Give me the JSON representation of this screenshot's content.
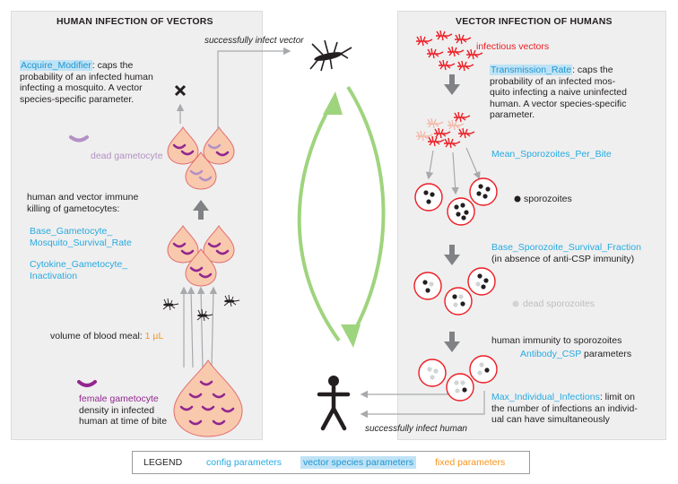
{
  "left_panel": {
    "title": "HUMAN INFECTION OF VECTORS",
    "acquire": {
      "param": "Acquire_Modifier",
      "l1": ": caps the",
      "l2": "probability of an infected human",
      "l3": "infecting a mosquito. A vector",
      "l4": "species-specific parameter."
    },
    "dead_gametocyte": "dead gametocyte",
    "killing": {
      "l1": "human and vector immune",
      "l2": "killing of gametocytes:"
    },
    "param_base_1": "Base_Gametocyte_",
    "param_base_2": "Mosquito_Survival_Rate",
    "param_cyto_1": "Cytokine_Gametocyte_",
    "param_cyto_2": "Inactivation",
    "blood_meal_label": "volume of blood meal:",
    "blood_meal_value": "1 µL",
    "female": {
      "label": "female gametocyte",
      "l2": "density in infected",
      "l3": "human at time of bite"
    }
  },
  "center": {
    "infect_vector": "successfully infect vector",
    "infect_human": "successfully infect human"
  },
  "right_panel": {
    "title": "VECTOR INFECTION OF HUMANS",
    "infectious_vectors": "infectious vectors",
    "transmission": {
      "param": "Transmission_Rate",
      "l1": ": caps the",
      "l2": "probability of an infected mos-",
      "l3": "quito infecting a naive uninfected",
      "l4": "human. A vector species-specific",
      "l5": "parameter."
    },
    "mean_spz": "Mean_Sporozoites_Per_Bite",
    "sporozoites": "sporozoites",
    "base_spz": "Base_Sporozoite_Survival_Fraction",
    "base_spz_note": "(in absence of anti-CSP immunity)",
    "dead_spz": "dead sporozoites",
    "immunity": "human immunity to sporozoites",
    "antibody": "Antibody_CSP",
    "antibody_suffix": "parameters",
    "max_inf": {
      "param": "Max_Individual_Infections",
      "l1": ": limit on",
      "l2": "the number of infections an individ-",
      "l3": "ual can have simultaneously"
    }
  },
  "legend": {
    "title": "LEGEND",
    "config": "config parameters",
    "vector": "vector species parameters",
    "fixed": "fixed parameters"
  },
  "colors": {
    "config": "#27aae1",
    "vector_bg": "#bfe3f6",
    "fixed": "#f7941d",
    "red": "#ed1c24",
    "gametocyte": "#92278f",
    "blood": "#f9c9ae",
    "cycle_arrow": "#9fd47e"
  }
}
